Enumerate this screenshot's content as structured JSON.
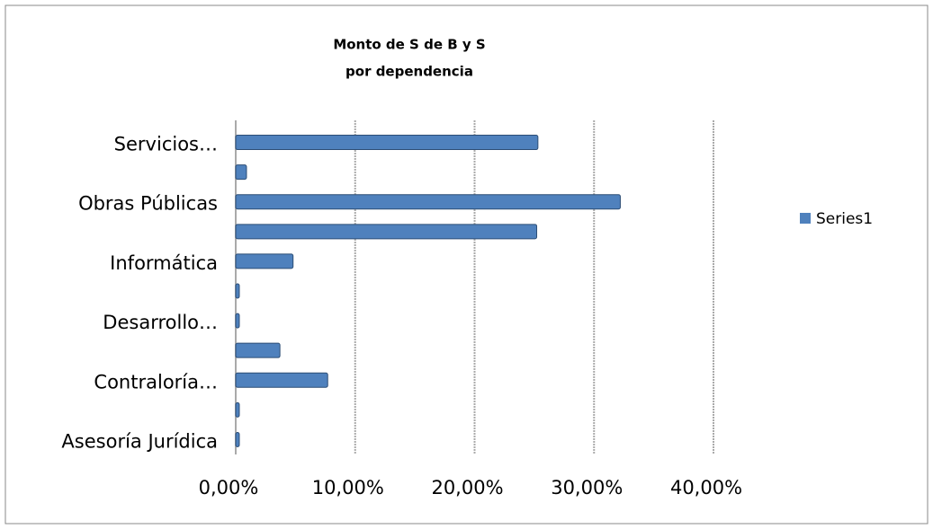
{
  "chart_data": {
    "type": "bar",
    "orientation": "horizontal",
    "title": [
      "Monto  de S de B y S",
      "por dependencia"
    ],
    "categories": [
      "Asesoría Jurídica",
      null,
      "Contraloría…",
      null,
      "Desarrollo…",
      null,
      "Informática",
      null,
      "Obras Públicas",
      null,
      "Servicios…"
    ],
    "series": [
      {
        "name": "Series1",
        "color": "#4f81bd",
        "values": [
          0.3,
          0.3,
          7.7,
          3.7,
          0.3,
          0.3,
          4.8,
          25.2,
          32.2,
          0.9,
          25.3
        ]
      }
    ],
    "xlim": [
      0,
      40
    ],
    "xticks": [
      {
        "value": 0,
        "label": "0,00%"
      },
      {
        "value": 10,
        "label": "10,00%"
      },
      {
        "value": 20,
        "label": "20,00%"
      },
      {
        "value": 30,
        "label": "30,00%"
      },
      {
        "value": 40,
        "label": "40,00%"
      }
    ],
    "grid": true,
    "legend": "right"
  }
}
